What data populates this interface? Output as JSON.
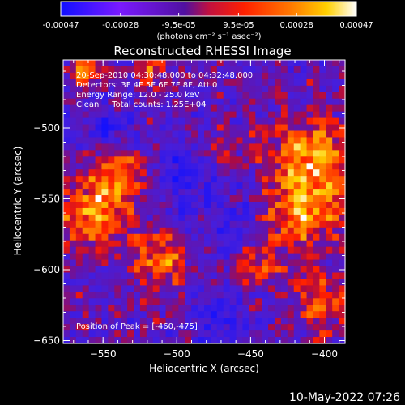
{
  "chart_data": {
    "type": "heatmap",
    "title": "Reconstructed RHESSI Image",
    "xlabel": "Heliocentric X (arcsec)",
    "ylabel": "Heliocentric Y (arcsec)",
    "xlim": [
      -577,
      -386
    ],
    "ylim": [
      -652,
      -452
    ],
    "xticks": [
      -550,
      -500,
      -450,
      -400
    ],
    "yticks": [
      -500,
      -550,
      -600,
      -650
    ],
    "xtick_labels": [
      "−550",
      "−500",
      "−450",
      "−400"
    ],
    "ytick_labels": [
      "−500",
      "−550",
      "−600",
      "−650"
    ],
    "colorbar": {
      "range": [
        -0.00047,
        0.00047
      ],
      "ticks": [
        -0.00047,
        -0.00028,
        -9.5e-05,
        9.5e-05,
        0.00028,
        0.00047
      ],
      "tick_labels": [
        "-0.00047",
        "-0.00028",
        "-9.5e-05",
        "9.5e-05",
        "0.00028",
        "0.00047"
      ],
      "unit_label": "(photons cm⁻² s⁻¹ asec⁻²)",
      "colors": [
        "#1010ff",
        "#7a1aff",
        "#c01040",
        "#ff2000",
        "#ff7a00",
        "#ffd000",
        "#ffffff"
      ]
    },
    "annotations": {
      "line1": "20-Sep-2010 04:30:48.000 to 04:32:48.000",
      "line2": "Detectors: 3F 4F 5F 6F 7F 8F, Att 0",
      "line3": "Energy Range: 12.0 - 25.0 keV",
      "line4": "Clean     Total counts: 1.25E+04",
      "peak": "Position of Peak = [-460,-475]"
    },
    "peak_position": [
      -460,
      -475
    ],
    "grid": false,
    "legend": "none"
  },
  "footer": {
    "timestamp": "10-May-2022 07:26"
  }
}
